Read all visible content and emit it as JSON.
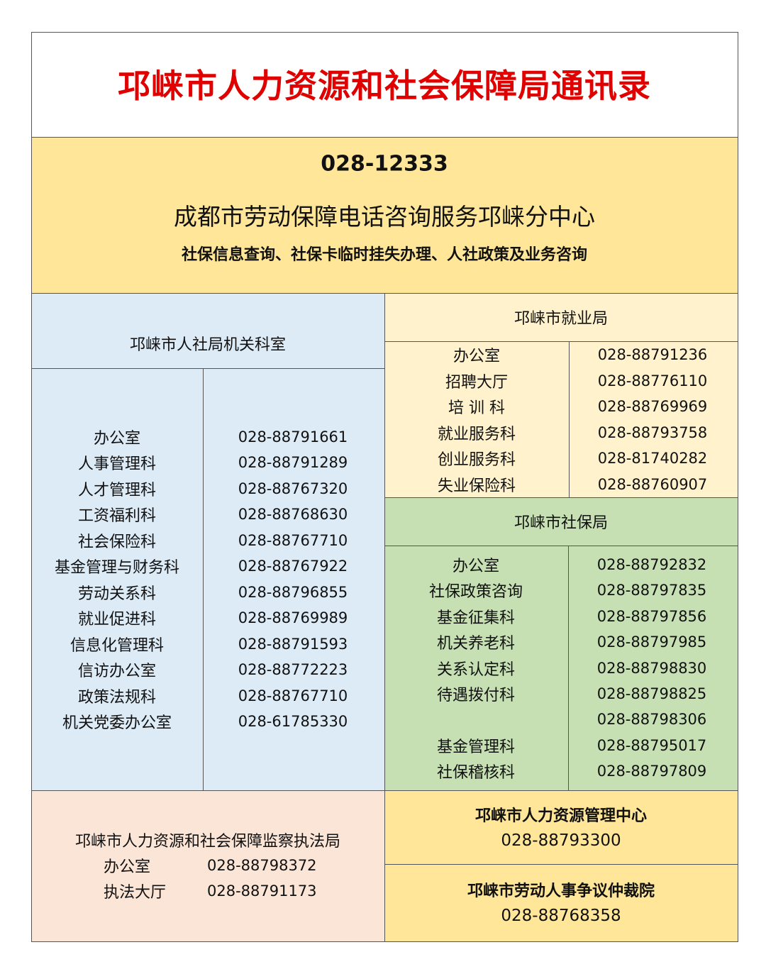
{
  "title": "邛崃市人力资源和社会保障局通讯录",
  "hotline": {
    "number": "028-12333",
    "name": "成都市劳动保障电话咨询服务邛崃分中心",
    "services": "社保信息查询、社保卡临时挂失办理、人社政策及业务咨询"
  },
  "bureau": {
    "header": "邛崃市人社局机关科室",
    "rows": [
      {
        "dept": "办公室",
        "phone": "028-88791661"
      },
      {
        "dept": "人事管理科",
        "phone": "028-88791289"
      },
      {
        "dept": "人才管理科",
        "phone": "028-88767320"
      },
      {
        "dept": "工资福利科",
        "phone": "028-88768630"
      },
      {
        "dept": "社会保险科",
        "phone": "028-88767710"
      },
      {
        "dept": "基金管理与财务科",
        "phone": "028-88767922"
      },
      {
        "dept": "劳动关系科",
        "phone": "028-88796855"
      },
      {
        "dept": "就业促进科",
        "phone": "028-88769989"
      },
      {
        "dept": "信息化管理科",
        "phone": "028-88791593"
      },
      {
        "dept": "信访办公室",
        "phone": "028-88772223"
      },
      {
        "dept": "政策法规科",
        "phone": "028-88767710"
      },
      {
        "dept": "机关党委办公室",
        "phone": "028-61785330"
      }
    ]
  },
  "employment": {
    "header": "邛崃市就业局",
    "rows": [
      {
        "dept": "办公室",
        "phone": "028-88791236"
      },
      {
        "dept": "招聘大厅",
        "phone": "028-88776110"
      },
      {
        "dept": "培 训 科",
        "phone": "028-88769969"
      },
      {
        "dept": "就业服务科",
        "phone": "028-88793758"
      },
      {
        "dept": "创业服务科",
        "phone": "028-81740282"
      },
      {
        "dept": "失业保险科",
        "phone": "028-88760907"
      }
    ]
  },
  "social_security": {
    "header": "邛崃市社保局",
    "rows": [
      {
        "dept": "办公室",
        "phone": "028-88792832"
      },
      {
        "dept": "社保政策咨询",
        "phone": "028-88797835"
      },
      {
        "dept": "基金征集科",
        "phone": "028-88797856"
      },
      {
        "dept": "机关养老科",
        "phone": "028-88797985"
      },
      {
        "dept": "关系认定科",
        "phone": "028-88798830"
      },
      {
        "dept": "待遇拨付科",
        "phone": "028-88798825"
      },
      {
        "dept": "",
        "phone": "028-88798306"
      },
      {
        "dept": "基金管理科",
        "phone": "028-88795017"
      },
      {
        "dept": "社保稽核科",
        "phone": "028-88797809"
      }
    ]
  },
  "inspection": {
    "header": "邛崃市人力资源和社会保障监察执法局",
    "rows": [
      {
        "dept": "办公室",
        "phone": "028-88798372"
      },
      {
        "dept": "执法大厅",
        "phone": "028-88791173"
      }
    ]
  },
  "hr_center": {
    "name": "邛崃市人力资源管理中心",
    "phone": "028-88793300"
  },
  "arbitration": {
    "name": "邛崃市劳动人事争议仲裁院",
    "phone": "028-88768358"
  },
  "colors": {
    "title": "#e00000",
    "hotline_bg": "#FFE699",
    "bureau_bg": "#DDEBF7",
    "employment_bg": "#FFF2CC",
    "social_bg": "#C6E0B4",
    "inspection_bg": "#FBE5D6"
  }
}
